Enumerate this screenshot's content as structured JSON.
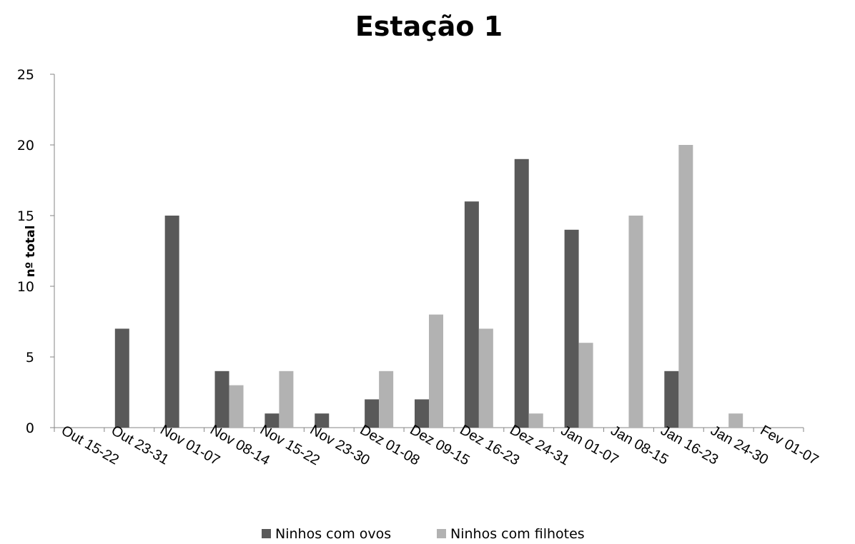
{
  "chart_data": {
    "type": "bar",
    "title": "Estação 1",
    "xlabel": "",
    "ylabel": "nº total",
    "ylim": [
      0,
      25
    ],
    "yticks": [
      "0",
      "5",
      "10",
      "15",
      "20",
      "25"
    ],
    "grid": false,
    "legend_position": "bottom",
    "categories": [
      "Out 15-22",
      "Out 23-31",
      "Nov 01-07",
      "Nov 08-14",
      "Nov 15-22",
      "Nov 23-30",
      "Dez 01-08",
      "Dez 09-15",
      "Dez 16-23",
      "Dez 24-31",
      "Jan 01-07",
      "Jan 08-15",
      "Jan 16-23",
      "Jan 24-30",
      "Fev 01-07"
    ],
    "series": [
      {
        "name": "Ninhos com ovos",
        "color": "#595959",
        "values": [
          0,
          7,
          15,
          4,
          1,
          1,
          2,
          2,
          16,
          19,
          14,
          0,
          4,
          0,
          0
        ]
      },
      {
        "name": "Ninhos com filhotes",
        "color": "#b2b2b2",
        "values": [
          0,
          0,
          0,
          3,
          4,
          0,
          4,
          8,
          7,
          1,
          6,
          15,
          20,
          1,
          0
        ]
      }
    ]
  }
}
